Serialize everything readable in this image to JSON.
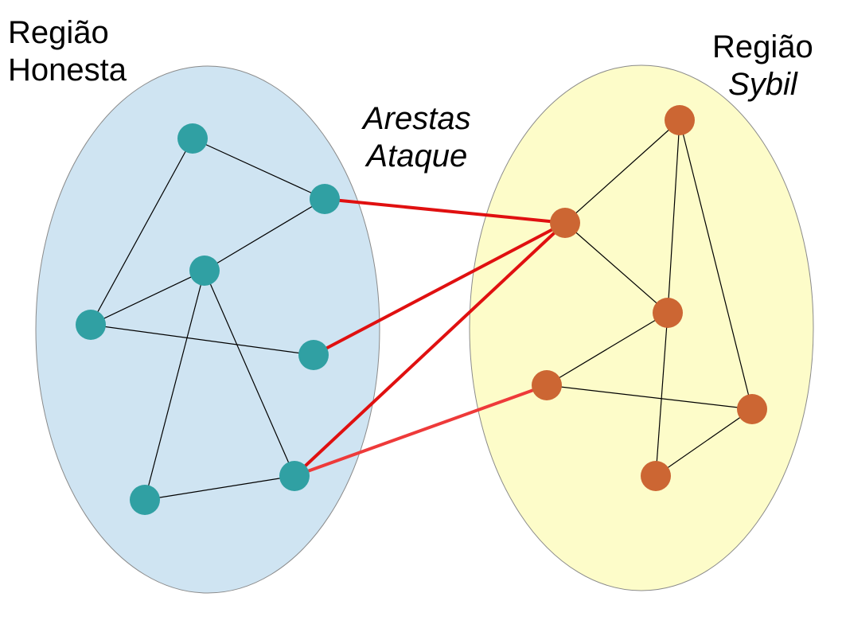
{
  "labels": {
    "honest_region": [
      "Região",
      "Honesta"
    ],
    "sybil_region": [
      "Região",
      "Sybil"
    ],
    "attack_edges": [
      "Arestas",
      "Ataque"
    ]
  },
  "colors": {
    "honest_region_fill": "#cfe4f2",
    "sybil_region_fill": "#fdfcc9",
    "region_stroke": "#8a8a8a",
    "honest_node": "#30a0a3",
    "sybil_node": "#cc6633",
    "edge": "#000000",
    "attack_edge": "#e01010",
    "attack_edge_light": "#ee3a3a"
  },
  "graph": {
    "honest_nodes": [
      "h1",
      "h2",
      "h3",
      "h4",
      "h5",
      "h6",
      "h7"
    ],
    "sybil_nodes": [
      "s1",
      "s2",
      "s3",
      "s4",
      "s5",
      "s6"
    ],
    "honest_edges": [
      [
        "h1",
        "h2"
      ],
      [
        "h1",
        "h4"
      ],
      [
        "h2",
        "h3"
      ],
      [
        "h3",
        "h4"
      ],
      [
        "h4",
        "h5"
      ],
      [
        "h3",
        "h6"
      ],
      [
        "h3",
        "h7"
      ],
      [
        "h6",
        "h7"
      ]
    ],
    "sybil_edges": [
      [
        "s1",
        "s2"
      ],
      [
        "s1",
        "s3"
      ],
      [
        "s1",
        "s5"
      ],
      [
        "s2",
        "s3"
      ],
      [
        "s3",
        "s4"
      ],
      [
        "s4",
        "s5"
      ],
      [
        "s3",
        "s6"
      ],
      [
        "s5",
        "s6"
      ]
    ],
    "attack_edges": [
      [
        "h2",
        "s2"
      ],
      [
        "h5",
        "s2"
      ],
      [
        "h7",
        "s2"
      ],
      [
        "h7",
        "s4"
      ]
    ]
  }
}
